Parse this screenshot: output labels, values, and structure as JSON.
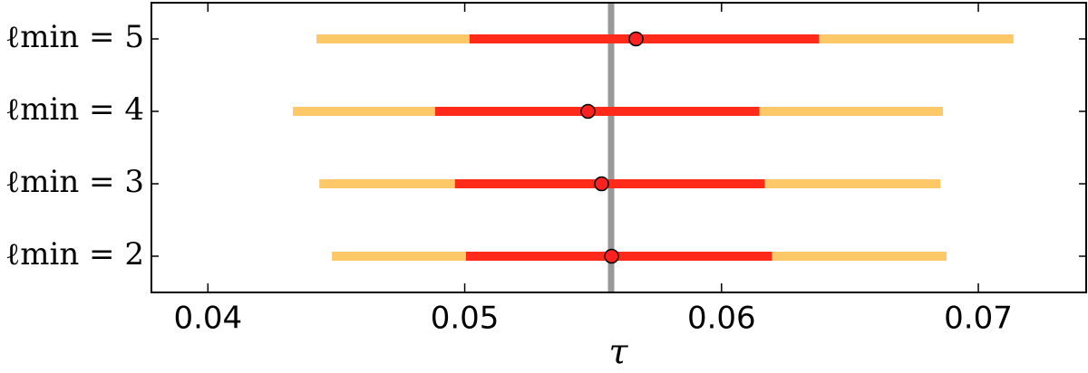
{
  "chart_data": {
    "type": "interval",
    "xlabel": "τ",
    "categories": [
      "ℓmin = 2",
      "ℓmin = 3",
      "ℓmin = 4",
      "ℓmin = 5"
    ],
    "values": [
      0.05572,
      0.05533,
      0.0548,
      0.05667
    ],
    "inner_low": [
      0.05005,
      0.04962,
      0.04885,
      0.05019
    ],
    "inner_high": [
      0.06196,
      0.06168,
      0.06147,
      0.06379
    ],
    "outer_low": [
      0.04483,
      0.04434,
      0.04331,
      0.04423
    ],
    "outer_high": [
      0.06876,
      0.06852,
      0.06862,
      0.07137
    ],
    "inner_color": "#ff2a1a",
    "outer_color": "#fcc868",
    "point_color": "#ff2020",
    "reference": {
      "value": 0.0557,
      "color": "#999999"
    },
    "xlim": [
      0.0378,
      0.0742
    ],
    "xticks": [
      0.04,
      0.05,
      0.06,
      0.07
    ]
  }
}
